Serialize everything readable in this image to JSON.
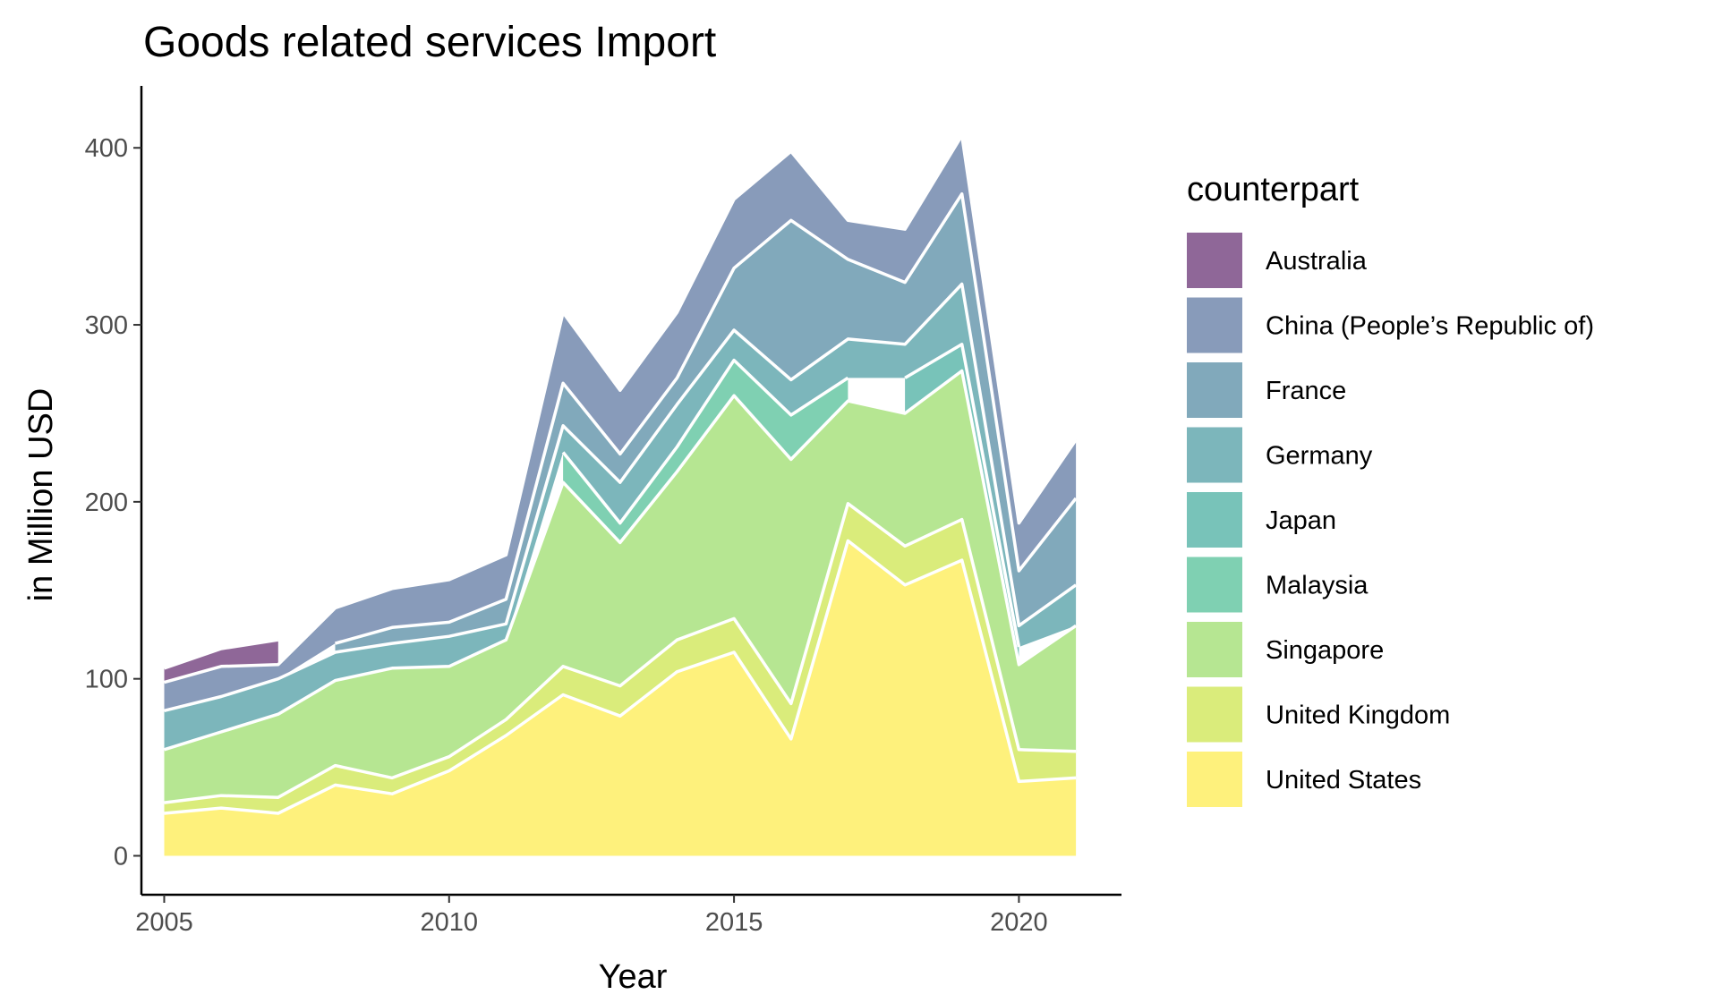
{
  "chart_data": {
    "type": "area",
    "stacked": true,
    "title": "Goods related services Import",
    "xlabel": "Year",
    "ylabel": "in Million USD",
    "xlim": [
      2004.6,
      2021.8
    ],
    "ylim": [
      -22,
      435
    ],
    "x_ticks": [
      2005,
      2010,
      2015,
      2020
    ],
    "y_ticks": [
      0,
      100,
      200,
      300,
      400
    ],
    "grid": false,
    "legend_title": "counterpart",
    "legend_position": "right",
    "x": [
      2005,
      2006,
      2007,
      2008,
      2009,
      2010,
      2011,
      2012,
      2013,
      2014,
      2015,
      2016,
      2017,
      2018,
      2019,
      2020,
      2021
    ],
    "series": [
      {
        "name": "United States",
        "color": "#FDE725",
        "values": [
          24,
          27,
          24,
          40,
          35,
          48,
          68,
          91,
          79,
          104,
          115,
          66,
          178,
          153,
          167,
          42,
          44
        ]
      },
      {
        "name": "United Kingdom",
        "color": "#C2DF23",
        "values": [
          6,
          7,
          9,
          11,
          9,
          8,
          9,
          16,
          17,
          18,
          19,
          20,
          21,
          22,
          23,
          18,
          15
        ]
      },
      {
        "name": "Singapore",
        "color": "#86D549",
        "values": [
          30,
          36,
          47,
          48,
          62,
          51,
          45,
          104,
          81,
          95,
          126,
          138,
          58,
          75,
          84,
          48,
          71
        ]
      },
      {
        "name": "Malaysia",
        "color": "#2AB07F",
        "values": [
          null,
          null,
          null,
          null,
          null,
          null,
          null,
          17,
          11,
          14,
          20,
          25,
          13,
          null,
          null,
          null,
          null
        ]
      },
      {
        "name": "Japan",
        "color": "#1E9B8A",
        "values": [
          null,
          null,
          null,
          null,
          null,
          null,
          null,
          null,
          null,
          null,
          null,
          null,
          null,
          20,
          15,
          10,
          null
        ]
      },
      {
        "name": "Germany",
        "color": "#25858E",
        "values": [
          22,
          20,
          20,
          16,
          14,
          17,
          9,
          15,
          23,
          24,
          17,
          20,
          22,
          19,
          34,
          12,
          23
        ]
      },
      {
        "name": "France",
        "color": "#2D708E",
        "values": [
          null,
          null,
          null,
          5,
          9,
          8,
          14,
          24,
          16,
          15,
          35,
          90,
          45,
          35,
          51,
          31,
          49
        ]
      },
      {
        "name": "China (People’s Republic of)",
        "color": "#38588C",
        "values": [
          16,
          17,
          8,
          20,
          22,
          24,
          25,
          40,
          36,
          37,
          39,
          39,
          22,
          30,
          33,
          27,
          33
        ]
      },
      {
        "name": "Australia",
        "color": "#440154",
        "values": [
          8,
          10,
          14,
          null,
          null,
          null,
          null,
          null,
          null,
          null,
          null,
          null,
          null,
          null,
          null,
          null,
          null
        ]
      }
    ]
  }
}
